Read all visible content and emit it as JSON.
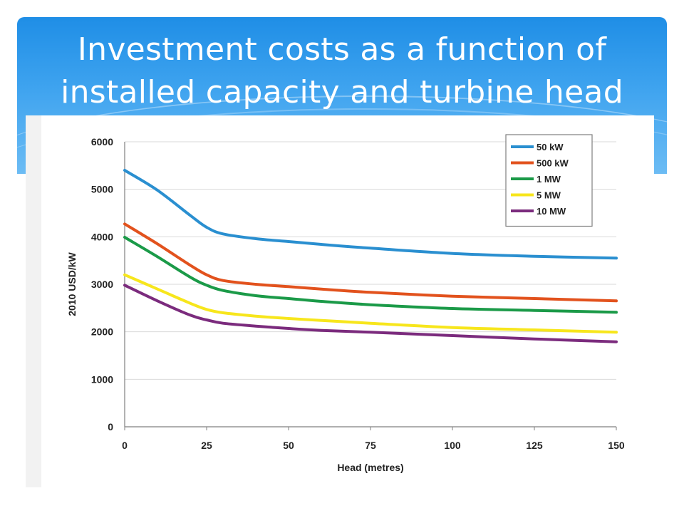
{
  "slide": {
    "title_line1": "Investment costs as a function of",
    "title_line2": "installed capacity and turbine head"
  },
  "colors": {
    "banner_top": "#1f8ee6",
    "banner_bottom": "#6cbcf4",
    "grid": "#d9d9d9"
  },
  "chart_data": {
    "type": "line",
    "title": "",
    "xlabel": "Head (metres)",
    "ylabel": "2010 USD/kW",
    "xlim": [
      0,
      150
    ],
    "ylim": [
      0,
      6000
    ],
    "xticks": [
      0,
      25,
      50,
      75,
      100,
      125,
      150
    ],
    "yticks": [
      0,
      1000,
      2000,
      3000,
      4000,
      5000,
      6000
    ],
    "grid": "horizontal",
    "legend_position": "top-right",
    "x": [
      0,
      10,
      20,
      25,
      30,
      40,
      50,
      60,
      75,
      100,
      125,
      150
    ],
    "series": [
      {
        "name": "50 kW",
        "color": "#2a8fd0",
        "values": [
          5400,
          4980,
          4450,
          4200,
          4060,
          3960,
          3900,
          3840,
          3760,
          3650,
          3590,
          3550
        ]
      },
      {
        "name": "500 kW",
        "color": "#e2521d",
        "values": [
          4270,
          3850,
          3400,
          3200,
          3080,
          3000,
          2950,
          2900,
          2830,
          2750,
          2700,
          2650
        ]
      },
      {
        "name": "1 MW",
        "color": "#1b9a48",
        "values": [
          3990,
          3580,
          3150,
          2980,
          2870,
          2760,
          2700,
          2640,
          2570,
          2490,
          2450,
          2410
        ]
      },
      {
        "name": "5 MW",
        "color": "#f7e61c",
        "values": [
          3200,
          2900,
          2600,
          2470,
          2400,
          2330,
          2280,
          2240,
          2180,
          2090,
          2040,
          1990
        ]
      },
      {
        "name": "10 MW",
        "color": "#7b2b7d",
        "values": [
          2980,
          2650,
          2350,
          2250,
          2180,
          2120,
          2070,
          2030,
          1990,
          1920,
          1850,
          1790
        ]
      }
    ]
  }
}
